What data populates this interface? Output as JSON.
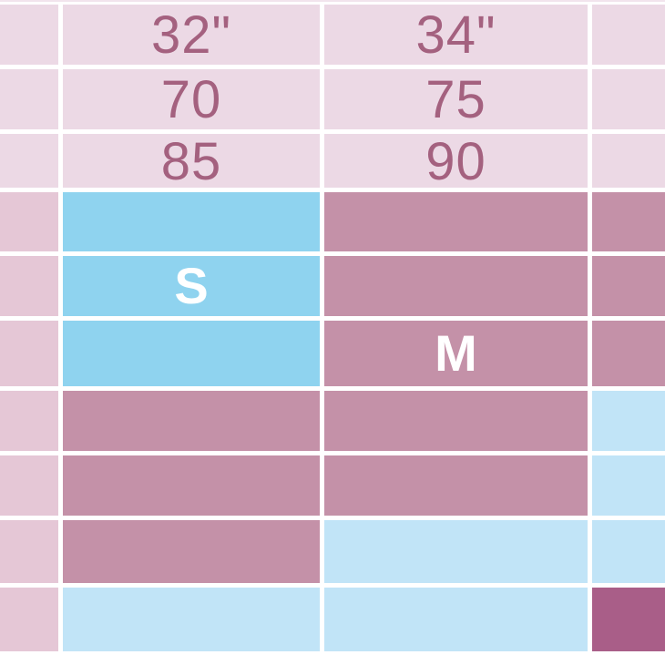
{
  "page": {
    "description_title": "Clothing size chart (cropped screenshot region)"
  },
  "colors": {
    "gridline": "#ffffff",
    "header_pink": "#ecd9e5",
    "label_pink": "#e5c7d6",
    "blue_strong": "#8fd3ef",
    "blue_light": "#c1e4f7",
    "mauve": "#c491a8",
    "magenta": "#a95e88",
    "header_text": "#a4617f",
    "size_label_text": "#ffffff"
  },
  "chart_data": {
    "type": "table",
    "title": "Size chart grid with measurement headers and size bands",
    "legend_position": "none",
    "grid": "on",
    "columns": [
      {
        "name": "row-label-column",
        "header": ""
      },
      {
        "name": "size-column-32in",
        "header": "32\""
      },
      {
        "name": "size-column-34in",
        "header": "34\""
      },
      {
        "name": "size-column-cropped",
        "header": ""
      }
    ],
    "header_values": {
      "underbust_inches": [
        "32\"",
        "34\""
      ],
      "band_row_2": [
        "70",
        "75"
      ],
      "band_row_3": [
        "85",
        "90"
      ]
    },
    "size_labels_visible": [
      "S",
      "M"
    ],
    "rows": [
      {
        "name": "underbust-inches",
        "cells": [
          {
            "text": "",
            "fill": "header_pink"
          },
          {
            "text": "32\"",
            "fill": "header_pink"
          },
          {
            "text": "34\"",
            "fill": "header_pink"
          },
          {
            "text": "",
            "fill": "header_pink"
          }
        ]
      },
      {
        "name": "band-row-70-75",
        "cells": [
          {
            "text": "",
            "fill": "header_pink"
          },
          {
            "text": "70",
            "fill": "header_pink"
          },
          {
            "text": "75",
            "fill": "header_pink"
          },
          {
            "text": "",
            "fill": "header_pink"
          }
        ]
      },
      {
        "name": "band-row-85-90",
        "cells": [
          {
            "text": "",
            "fill": "header_pink"
          },
          {
            "text": "85",
            "fill": "header_pink"
          },
          {
            "text": "90",
            "fill": "header_pink"
          },
          {
            "text": "",
            "fill": "header_pink"
          }
        ]
      },
      {
        "name": "size-band-1",
        "cells": [
          {
            "text": "",
            "fill": "label_pink"
          },
          {
            "text": "",
            "fill": "blue_strong"
          },
          {
            "text": "",
            "fill": "mauve"
          },
          {
            "text": "",
            "fill": "mauve"
          }
        ]
      },
      {
        "name": "size-band-2-S",
        "cells": [
          {
            "text": "",
            "fill": "label_pink"
          },
          {
            "text": "S",
            "fill": "blue_strong"
          },
          {
            "text": "",
            "fill": "mauve"
          },
          {
            "text": "",
            "fill": "mauve"
          }
        ]
      },
      {
        "name": "size-band-3-M",
        "cells": [
          {
            "text": "",
            "fill": "label_pink"
          },
          {
            "text": "",
            "fill": "blue_strong"
          },
          {
            "text": "M",
            "fill": "mauve"
          },
          {
            "text": "",
            "fill": "mauve"
          }
        ]
      },
      {
        "name": "size-band-4",
        "cells": [
          {
            "text": "",
            "fill": "label_pink"
          },
          {
            "text": "",
            "fill": "mauve"
          },
          {
            "text": "",
            "fill": "mauve"
          },
          {
            "text": "",
            "fill": "blue_light"
          }
        ]
      },
      {
        "name": "size-band-5",
        "cells": [
          {
            "text": "",
            "fill": "label_pink"
          },
          {
            "text": "",
            "fill": "mauve"
          },
          {
            "text": "",
            "fill": "mauve"
          },
          {
            "text": "",
            "fill": "blue_light"
          }
        ]
      },
      {
        "name": "size-band-6",
        "cells": [
          {
            "text": "",
            "fill": "label_pink"
          },
          {
            "text": "",
            "fill": "mauve"
          },
          {
            "text": "",
            "fill": "blue_light"
          },
          {
            "text": "",
            "fill": "blue_light"
          }
        ]
      },
      {
        "name": "size-band-7",
        "cells": [
          {
            "text": "",
            "fill": "label_pink"
          },
          {
            "text": "",
            "fill": "blue_light"
          },
          {
            "text": "",
            "fill": "blue_light"
          },
          {
            "text": "",
            "fill": "magenta"
          }
        ]
      }
    ]
  }
}
